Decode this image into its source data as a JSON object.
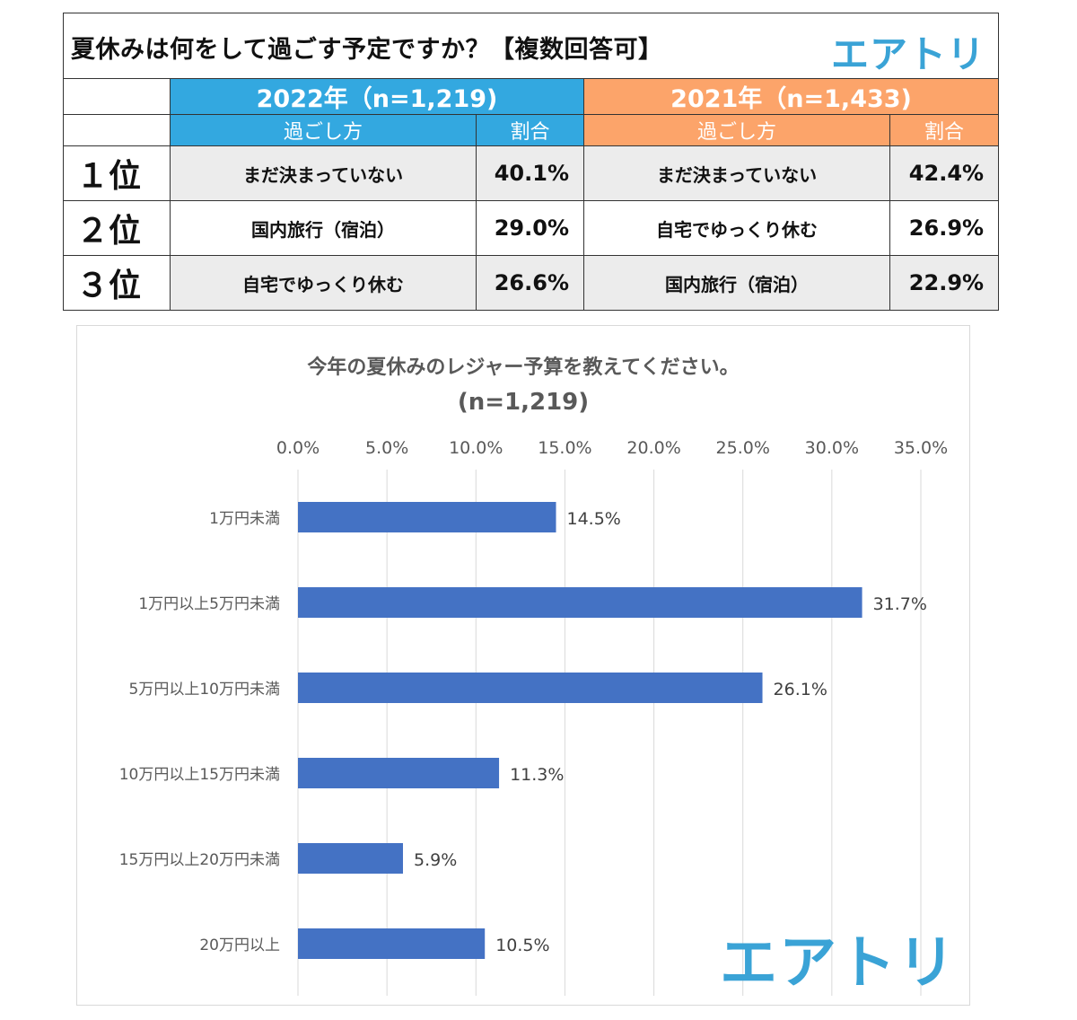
{
  "brand": {
    "logo": "エアトリ",
    "color": "#3aa3d6"
  },
  "table": {
    "title": "夏休みは何をして過ごす予定ですか？【複数回答可】",
    "col2022": {
      "header": "2022年（n=1,219)",
      "color": "#33a8e0",
      "way_label": "過ごし方",
      "ratio_label": "割合"
    },
    "col2021": {
      "header": "2021年（n=1,433)",
      "color": "#fca46a",
      "way_label": "過ごし方",
      "ratio_label": "割合"
    },
    "rows": [
      {
        "rank": "１位",
        "way2022": "まだ決まっていない",
        "pct2022": "40.1%",
        "way2021": "まだ決まっていない",
        "pct2021": "42.4%"
      },
      {
        "rank": "２位",
        "way2022": "国内旅行（宿泊）",
        "pct2022": "29.0%",
        "way2021": "自宅でゆっくり休む",
        "pct2021": "26.9%"
      },
      {
        "rank": "３位",
        "way2022": "自宅でゆっくり休む",
        "pct2022": "26.6%",
        "way2021": "国内旅行（宿泊）",
        "pct2021": "22.9%"
      }
    ]
  },
  "chart_data": {
    "type": "bar",
    "orientation": "horizontal",
    "title": "今年の夏休みのレジャー予算を教えてください。",
    "subtitle": "(n=1,219)",
    "categories": [
      "1万円未満",
      "1万円以上5万円未満",
      "5万円以上10万円未満",
      "10万円以上15万円未満",
      "15万円以上20万円未満",
      "20万円以上"
    ],
    "values": [
      14.5,
      31.7,
      26.1,
      11.3,
      5.9,
      10.5
    ],
    "value_labels": [
      "14.5%",
      "31.7%",
      "26.1%",
      "11.3%",
      "5.9%",
      "10.5%"
    ],
    "xlim": [
      0,
      35
    ],
    "x_ticks": [
      "0.0%",
      "5.0%",
      "10.0%",
      "15.0%",
      "20.0%",
      "25.0%",
      "30.0%",
      "35.0%"
    ],
    "x_axis_position": "top",
    "grid": true,
    "bar_color": "#4472c4"
  }
}
